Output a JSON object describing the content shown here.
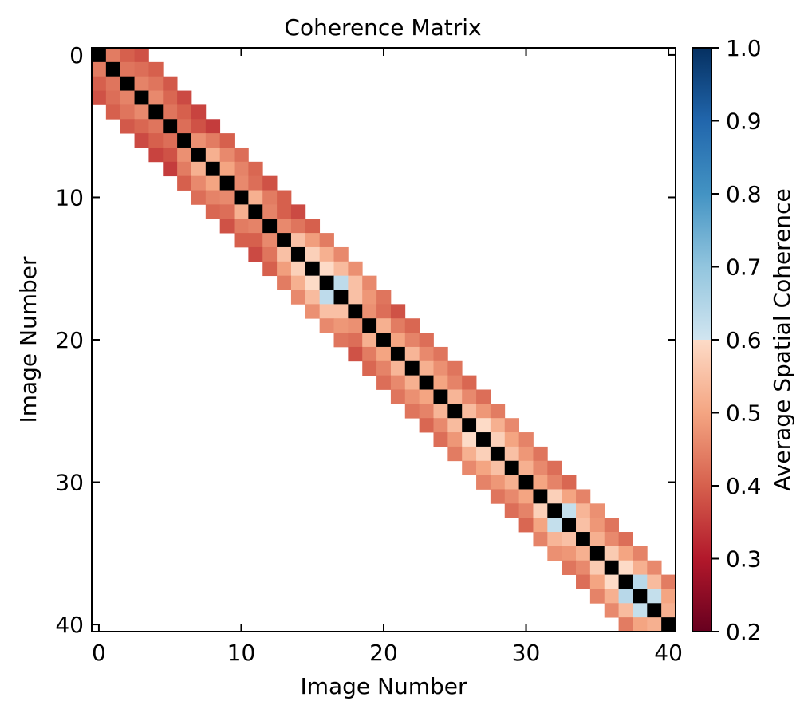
{
  "chart_data": {
    "type": "heatmap",
    "title": "Coherence Matrix",
    "xlabel": "Image Number",
    "ylabel": "Image Number",
    "n": 41,
    "bandwidth": 3,
    "xlim": [
      0,
      40
    ],
    "ylim": [
      40,
      0
    ],
    "x_ticks": [
      "0",
      "10",
      "20",
      "30",
      "40"
    ],
    "y_ticks": [
      "0",
      "10",
      "20",
      "30",
      "40"
    ],
    "colorbar": {
      "label": "Average Spatial Coherence",
      "range": [
        0.2,
        1.0
      ],
      "ticks": [
        "0.2",
        "0.3",
        "0.4",
        "0.5",
        "0.6",
        "0.7",
        "0.8",
        "0.9",
        "1.0"
      ],
      "colormap": "RdBu"
    },
    "diagonal_color": "#000000",
    "offdiagonal_by_offset": {
      "1": [
        0.44,
        0.43,
        0.45,
        0.46,
        0.43,
        0.42,
        0.47,
        0.52,
        0.5,
        0.46,
        0.52,
        0.45,
        0.46,
        0.55,
        0.58,
        0.6,
        0.63,
        0.55,
        0.47,
        0.52,
        0.5,
        0.53,
        0.52,
        0.5,
        0.53,
        0.54,
        0.6,
        0.58,
        0.55,
        0.52,
        0.5,
        0.58,
        0.62,
        0.55,
        0.52,
        0.57,
        0.6,
        0.64,
        0.62,
        0.52
      ],
      "2": [
        0.4,
        0.42,
        0.43,
        0.41,
        0.4,
        0.38,
        0.44,
        0.46,
        0.45,
        0.42,
        0.44,
        0.4,
        0.43,
        0.49,
        0.52,
        0.54,
        0.55,
        0.48,
        0.42,
        0.44,
        0.45,
        0.46,
        0.47,
        0.45,
        0.46,
        0.48,
        0.52,
        0.5,
        0.48,
        0.46,
        0.45,
        0.5,
        0.53,
        0.48,
        0.46,
        0.5,
        0.52,
        0.54,
        0.5
      ],
      "3": [
        0.38,
        0.4,
        0.39,
        0.37,
        0.36,
        0.35,
        0.4,
        0.42,
        0.41,
        0.38,
        0.4,
        0.37,
        0.4,
        0.44,
        0.46,
        0.47,
        0.46,
        0.43,
        0.38,
        0.41,
        0.42,
        0.43,
        0.43,
        0.41,
        0.42,
        0.44,
        0.46,
        0.45,
        0.43,
        0.42,
        0.41,
        0.45,
        0.47,
        0.43,
        0.42,
        0.45,
        0.46,
        0.44
      ]
    }
  }
}
